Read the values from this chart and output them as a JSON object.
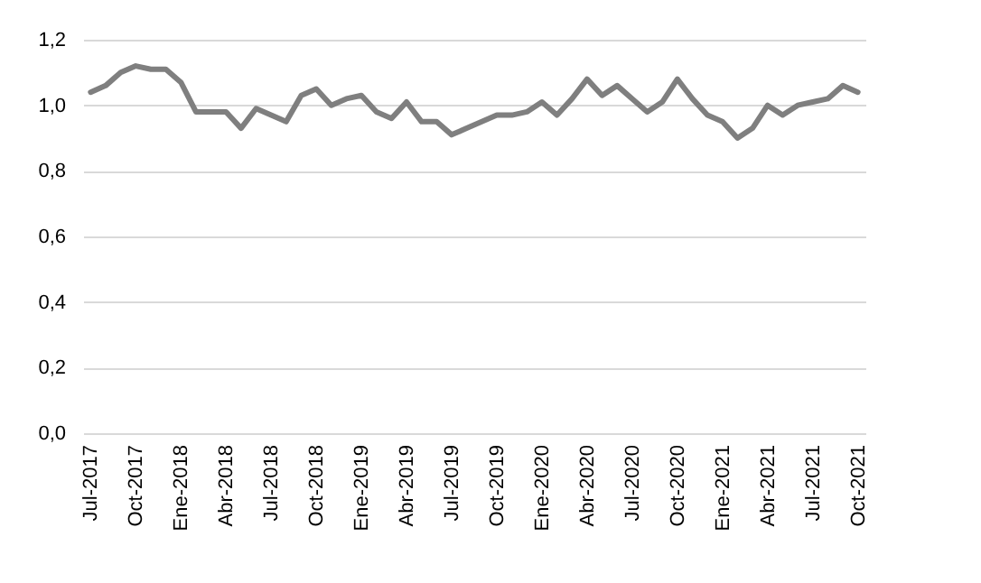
{
  "chart_data": {
    "type": "line",
    "categories": [
      "Jul-2017",
      null,
      null,
      "Oct-2017",
      null,
      null,
      "Ene-2018",
      null,
      null,
      "Abr-2018",
      null,
      null,
      "Jul-2018",
      null,
      null,
      "Oct-2018",
      null,
      null,
      "Ene-2019",
      null,
      null,
      "Abr-2019",
      null,
      null,
      "Jul-2019",
      null,
      null,
      "Oct-2019",
      null,
      null,
      "Ene-2020",
      null,
      null,
      "Abr-2020",
      null,
      null,
      "Jul-2020",
      null,
      null,
      "Oct-2020",
      null,
      null,
      "Ene-2021",
      null,
      null,
      "Abr-2021",
      null,
      null,
      "Jul-2021",
      null,
      null,
      "Oct-2021"
    ],
    "series": [
      {
        "color": "#7f7f7f",
        "values": [
          1.04,
          1.06,
          1.1,
          1.12,
          1.11,
          1.11,
          1.07,
          0.98,
          0.98,
          0.98,
          0.93,
          0.99,
          0.97,
          0.95,
          1.03,
          1.05,
          1.0,
          1.02,
          1.03,
          0.98,
          0.96,
          1.01,
          0.95,
          0.95,
          0.91,
          0.93,
          0.95,
          0.97,
          0.97,
          0.98,
          1.01,
          0.97,
          1.02,
          1.08,
          1.03,
          1.06,
          1.02,
          0.98,
          1.01,
          1.08,
          1.02,
          0.97,
          0.95,
          0.9,
          0.93,
          1.0,
          0.97,
          1.0,
          1.01,
          1.02,
          1.06,
          1.04
        ]
      }
    ],
    "ylim": [
      0,
      1.2
    ],
    "yticks": [
      {
        "value": 0,
        "label": "0,0"
      },
      {
        "value": 0.2,
        "label": "0,2"
      },
      {
        "value": 0.4,
        "label": "0,4"
      },
      {
        "value": 0.6,
        "label": "0,6"
      },
      {
        "value": 0.8,
        "label": "0,8"
      },
      {
        "value": 1,
        "label": "1,0"
      },
      {
        "value": 1.2,
        "label": "1,2"
      }
    ],
    "grid": "y",
    "line_style": "solid",
    "marker": "none"
  }
}
